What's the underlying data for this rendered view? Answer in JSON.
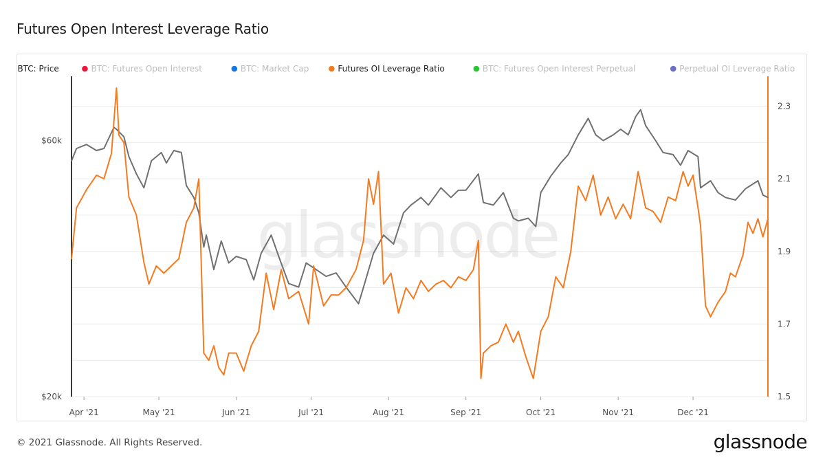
{
  "page": {
    "title": "Futures Open Interest Leverage Ratio",
    "copyright": "© 2021 Glassnode. All Rights Reserved.",
    "brand": "glassnode",
    "watermark": "glassnode"
  },
  "colors": {
    "price": "#707070",
    "leverage": "#f47a20",
    "open_interest": "#e8173d",
    "market_cap": "#1677e8",
    "oi_perpetual": "#26c832",
    "perp_leverage": "#6a6fc8",
    "inactive_text": "#bdbdbd",
    "grid": "#ececec"
  },
  "chart_data": {
    "type": "line",
    "title": "Futures Open Interest Leverage Ratio",
    "legend": [
      {
        "name": "BTC: Price",
        "color": "#707070",
        "active": true
      },
      {
        "name": "BTC: Futures Open Interest",
        "color": "#e8173d",
        "active": false
      },
      {
        "name": "BTC: Market Cap",
        "color": "#1677e8",
        "active": false
      },
      {
        "name": "Futures OI Leverage Ratio",
        "color": "#f47a20",
        "active": true
      },
      {
        "name": "BTC: Futures Open Interest Perpetual",
        "color": "#26c832",
        "active": false
      },
      {
        "name": "Perpetual OI Leverage Ratio",
        "color": "#6a6fc8",
        "active": false
      }
    ],
    "legend_position": "top",
    "grid": true,
    "x": {
      "start": "2021-03-27",
      "end": "2021-12-31",
      "tick_labels": [
        "Apr '21",
        "May '21",
        "Jun '21",
        "Jul '21",
        "Aug '21",
        "Sep '21",
        "Oct '21",
        "Nov '21",
        "Dec '21"
      ],
      "tick_dates": [
        "2021-04-01",
        "2021-05-01",
        "2021-06-01",
        "2021-07-01",
        "2021-08-01",
        "2021-09-01",
        "2021-10-01",
        "2021-11-01",
        "2021-12-01"
      ]
    },
    "y_left": {
      "label": "",
      "scale": "log",
      "range": [
        20000,
        80000
      ],
      "tick_labels": [
        "$20k",
        "$60k"
      ],
      "tick_values": [
        20000,
        60000
      ]
    },
    "y_right": {
      "label": "",
      "scale": "linear",
      "range": [
        1.5,
        2.39
      ],
      "tick_labels": [
        "1.5",
        "1.7",
        "1.9",
        "2.1",
        "2.3"
      ],
      "tick_values": [
        1.5,
        1.7,
        1.9,
        2.1,
        2.3
      ]
    },
    "series": [
      {
        "name": "BTC: Price",
        "axis": "left",
        "points": [
          [
            "2021-03-27",
            55000
          ],
          [
            "2021-03-29",
            58000
          ],
          [
            "2021-04-02",
            59000
          ],
          [
            "2021-04-06",
            57500
          ],
          [
            "2021-04-09",
            58000
          ],
          [
            "2021-04-13",
            63500
          ],
          [
            "2021-04-14",
            63000
          ],
          [
            "2021-04-17",
            61000
          ],
          [
            "2021-04-19",
            56000
          ],
          [
            "2021-04-22",
            52000
          ],
          [
            "2021-04-25",
            49000
          ],
          [
            "2021-04-28",
            55000
          ],
          [
            "2021-05-02",
            57000
          ],
          [
            "2021-05-04",
            54500
          ],
          [
            "2021-05-07",
            57500
          ],
          [
            "2021-05-10",
            57000
          ],
          [
            "2021-05-12",
            49500
          ],
          [
            "2021-05-15",
            47000
          ],
          [
            "2021-05-17",
            44000
          ],
          [
            "2021-05-19",
            38000
          ],
          [
            "2021-05-20",
            40000
          ],
          [
            "2021-05-23",
            34500
          ],
          [
            "2021-05-26",
            39000
          ],
          [
            "2021-05-29",
            35500
          ],
          [
            "2021-06-01",
            36500
          ],
          [
            "2021-06-05",
            36000
          ],
          [
            "2021-06-08",
            33000
          ],
          [
            "2021-06-11",
            37000
          ],
          [
            "2021-06-15",
            40000
          ],
          [
            "2021-06-18",
            36500
          ],
          [
            "2021-06-22",
            32500
          ],
          [
            "2021-06-26",
            32000
          ],
          [
            "2021-06-29",
            35500
          ],
          [
            "2021-07-03",
            34500
          ],
          [
            "2021-07-07",
            33500
          ],
          [
            "2021-07-11",
            34000
          ],
          [
            "2021-07-15",
            32000
          ],
          [
            "2021-07-20",
            29800
          ],
          [
            "2021-07-22",
            32000
          ],
          [
            "2021-07-26",
            37000
          ],
          [
            "2021-07-30",
            40000
          ],
          [
            "2021-08-03",
            38500
          ],
          [
            "2021-08-07",
            44000
          ],
          [
            "2021-08-10",
            45500
          ],
          [
            "2021-08-14",
            47000
          ],
          [
            "2021-08-17",
            45500
          ],
          [
            "2021-08-22",
            49000
          ],
          [
            "2021-08-26",
            47000
          ],
          [
            "2021-08-29",
            48500
          ],
          [
            "2021-09-01",
            48500
          ],
          [
            "2021-09-06",
            52000
          ],
          [
            "2021-09-08",
            46000
          ],
          [
            "2021-09-12",
            45500
          ],
          [
            "2021-09-16",
            48000
          ],
          [
            "2021-09-20",
            43000
          ],
          [
            "2021-09-22",
            42500
          ],
          [
            "2021-09-26",
            43000
          ],
          [
            "2021-09-29",
            41500
          ],
          [
            "2021-10-01",
            48000
          ],
          [
            "2021-10-05",
            51500
          ],
          [
            "2021-10-09",
            54500
          ],
          [
            "2021-10-12",
            56500
          ],
          [
            "2021-10-16",
            61500
          ],
          [
            "2021-10-20",
            66000
          ],
          [
            "2021-10-23",
            61500
          ],
          [
            "2021-10-26",
            60000
          ],
          [
            "2021-10-30",
            61500
          ],
          [
            "2021-11-02",
            63000
          ],
          [
            "2021-11-05",
            61500
          ],
          [
            "2021-11-08",
            66500
          ],
          [
            "2021-11-10",
            68500
          ],
          [
            "2021-11-12",
            64000
          ],
          [
            "2021-11-16",
            60000
          ],
          [
            "2021-11-19",
            57000
          ],
          [
            "2021-11-23",
            56500
          ],
          [
            "2021-11-26",
            54000
          ],
          [
            "2021-11-29",
            57500
          ],
          [
            "2021-12-03",
            56000
          ],
          [
            "2021-12-04",
            49000
          ],
          [
            "2021-12-08",
            50500
          ],
          [
            "2021-12-11",
            48000
          ],
          [
            "2021-12-14",
            47000
          ],
          [
            "2021-12-18",
            46500
          ],
          [
            "2021-12-22",
            48800
          ],
          [
            "2021-12-27",
            50500
          ],
          [
            "2021-12-29",
            47500
          ],
          [
            "2021-12-31",
            47000
          ]
        ]
      },
      {
        "name": "Futures OI Leverage Ratio",
        "axis": "right",
        "points": [
          [
            "2021-03-27",
            1.88
          ],
          [
            "2021-03-29",
            2.02
          ],
          [
            "2021-04-02",
            2.07
          ],
          [
            "2021-04-06",
            2.11
          ],
          [
            "2021-04-09",
            2.1
          ],
          [
            "2021-04-12",
            2.17
          ],
          [
            "2021-04-14",
            2.35
          ],
          [
            "2021-04-15",
            2.22
          ],
          [
            "2021-04-17",
            2.2
          ],
          [
            "2021-04-19",
            2.05
          ],
          [
            "2021-04-22",
            2.0
          ],
          [
            "2021-04-25",
            1.87
          ],
          [
            "2021-04-27",
            1.81
          ],
          [
            "2021-04-30",
            1.86
          ],
          [
            "2021-05-03",
            1.84
          ],
          [
            "2021-05-06",
            1.86
          ],
          [
            "2021-05-09",
            1.88
          ],
          [
            "2021-05-12",
            1.98
          ],
          [
            "2021-05-15",
            2.02
          ],
          [
            "2021-05-17",
            2.1
          ],
          [
            "2021-05-19",
            1.62
          ],
          [
            "2021-05-21",
            1.6
          ],
          [
            "2021-05-23",
            1.64
          ],
          [
            "2021-05-25",
            1.58
          ],
          [
            "2021-05-27",
            1.56
          ],
          [
            "2021-05-29",
            1.62
          ],
          [
            "2021-06-01",
            1.62
          ],
          [
            "2021-06-04",
            1.57
          ],
          [
            "2021-06-07",
            1.64
          ],
          [
            "2021-06-10",
            1.68
          ],
          [
            "2021-06-13",
            1.84
          ],
          [
            "2021-06-16",
            1.74
          ],
          [
            "2021-06-19",
            1.85
          ],
          [
            "2021-06-22",
            1.77
          ],
          [
            "2021-06-26",
            1.79
          ],
          [
            "2021-06-30",
            1.7
          ],
          [
            "2021-07-02",
            1.86
          ],
          [
            "2021-07-06",
            1.75
          ],
          [
            "2021-07-09",
            1.78
          ],
          [
            "2021-07-12",
            1.78
          ],
          [
            "2021-07-15",
            1.8
          ],
          [
            "2021-07-19",
            1.85
          ],
          [
            "2021-07-22",
            1.93
          ],
          [
            "2021-07-24",
            2.1
          ],
          [
            "2021-07-26",
            2.03
          ],
          [
            "2021-07-28",
            2.12
          ],
          [
            "2021-07-30",
            1.81
          ],
          [
            "2021-08-02",
            1.84
          ],
          [
            "2021-08-05",
            1.73
          ],
          [
            "2021-08-08",
            1.8
          ],
          [
            "2021-08-11",
            1.77
          ],
          [
            "2021-08-14",
            1.82
          ],
          [
            "2021-08-17",
            1.79
          ],
          [
            "2021-08-20",
            1.81
          ],
          [
            "2021-08-23",
            1.82
          ],
          [
            "2021-08-26",
            1.8
          ],
          [
            "2021-08-29",
            1.83
          ],
          [
            "2021-09-01",
            1.82
          ],
          [
            "2021-09-04",
            1.85
          ],
          [
            "2021-09-06",
            1.93
          ],
          [
            "2021-09-07",
            1.55
          ],
          [
            "2021-09-08",
            1.62
          ],
          [
            "2021-09-11",
            1.64
          ],
          [
            "2021-09-14",
            1.65
          ],
          [
            "2021-09-17",
            1.7
          ],
          [
            "2021-09-20",
            1.65
          ],
          [
            "2021-09-22",
            1.68
          ],
          [
            "2021-09-25",
            1.61
          ],
          [
            "2021-09-28",
            1.55
          ],
          [
            "2021-10-01",
            1.68
          ],
          [
            "2021-10-04",
            1.72
          ],
          [
            "2021-10-07",
            1.83
          ],
          [
            "2021-10-10",
            1.8
          ],
          [
            "2021-10-13",
            1.9
          ],
          [
            "2021-10-16",
            2.08
          ],
          [
            "2021-10-19",
            2.04
          ],
          [
            "2021-10-22",
            2.11
          ],
          [
            "2021-10-25",
            2.0
          ],
          [
            "2021-10-28",
            2.05
          ],
          [
            "2021-10-31",
            1.99
          ],
          [
            "2021-11-03",
            2.03
          ],
          [
            "2021-11-06",
            1.99
          ],
          [
            "2021-11-09",
            2.12
          ],
          [
            "2021-11-12",
            2.02
          ],
          [
            "2021-11-15",
            2.01
          ],
          [
            "2021-11-18",
            1.98
          ],
          [
            "2021-11-21",
            2.05
          ],
          [
            "2021-11-24",
            2.04
          ],
          [
            "2021-11-27",
            2.12
          ],
          [
            "2021-11-29",
            2.08
          ],
          [
            "2021-12-01",
            2.11
          ],
          [
            "2021-12-03",
            2.02
          ],
          [
            "2021-12-04",
            1.97
          ],
          [
            "2021-12-06",
            1.75
          ],
          [
            "2021-12-08",
            1.72
          ],
          [
            "2021-12-11",
            1.76
          ],
          [
            "2021-12-14",
            1.79
          ],
          [
            "2021-12-16",
            1.84
          ],
          [
            "2021-12-18",
            1.83
          ],
          [
            "2021-12-21",
            1.89
          ],
          [
            "2021-12-23",
            1.98
          ],
          [
            "2021-12-25",
            1.95
          ],
          [
            "2021-12-27",
            1.99
          ],
          [
            "2021-12-29",
            1.94
          ],
          [
            "2021-12-31",
            1.99
          ]
        ]
      }
    ]
  }
}
